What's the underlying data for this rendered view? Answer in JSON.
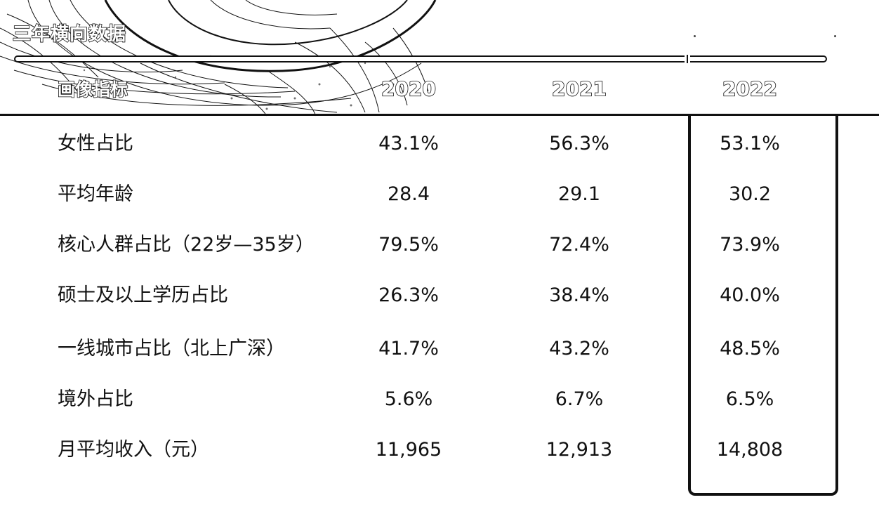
{
  "chart_data": {
    "type": "table",
    "title": "三年横向数据",
    "header_label": "画像指标",
    "columns": [
      "2020",
      "2021",
      "2022"
    ],
    "highlight_column": "2022",
    "rows": [
      {
        "label": "女性占比",
        "values": [
          "43.1%",
          "56.3%",
          "53.1%"
        ]
      },
      {
        "label": "平均年龄",
        "values": [
          "28.4",
          "29.1",
          "30.2"
        ]
      },
      {
        "label": "核心人群占比（22岁—35岁）",
        "values": [
          "79.5%",
          "72.4%",
          "73.9%"
        ]
      },
      {
        "label": "硕士及以上学历占比",
        "values": [
          "26.3%",
          "38.4%",
          "40.0%"
        ]
      },
      {
        "label": "一线城市占比（北上广深）",
        "values": [
          "41.7%",
          "43.2%",
          "48.5%"
        ]
      },
      {
        "label": "境外占比",
        "values": [
          "5.6%",
          "6.7%",
          "6.5%"
        ]
      },
      {
        "label": "月平均收入（元）",
        "values": [
          "11,965",
          "12,913",
          "14,808"
        ]
      }
    ]
  }
}
